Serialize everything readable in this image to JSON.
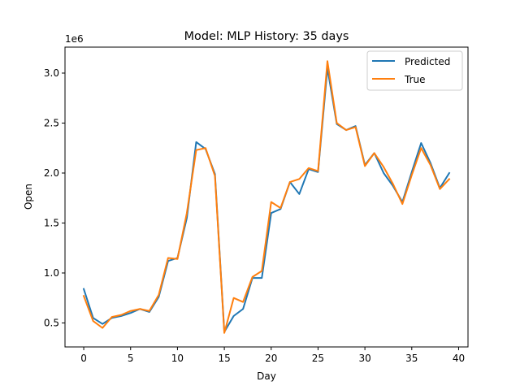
{
  "chart_data": {
    "type": "line",
    "title": "Model: MLP  History: 35 days",
    "xlabel": "Day",
    "ylabel": "Open",
    "y_offset_label": "1e6",
    "xlim": [
      -2,
      41
    ],
    "ylim": [
      0.26,
      3.26
    ],
    "xticks": [
      0,
      5,
      10,
      15,
      20,
      25,
      30,
      35,
      40
    ],
    "yticks": [
      0.5,
      1.0,
      1.5,
      2.0,
      2.5,
      3.0
    ],
    "ytick_labels": [
      "0.5",
      "1.0",
      "1.5",
      "2.0",
      "2.5",
      "3.0"
    ],
    "grid": false,
    "legend_position": "top-right",
    "x": [
      0,
      1,
      2,
      3,
      4,
      5,
      6,
      7,
      8,
      9,
      10,
      11,
      12,
      13,
      14,
      15,
      16,
      17,
      18,
      19,
      20,
      21,
      22,
      23,
      24,
      25,
      26,
      27,
      28,
      29,
      30,
      31,
      32,
      33,
      34,
      35,
      36,
      37,
      38,
      39
    ],
    "series": [
      {
        "name": "Predicted",
        "color": "#1f77b4",
        "values": [
          0.84,
          0.55,
          0.49,
          0.55,
          0.57,
          0.6,
          0.64,
          0.61,
          0.76,
          1.12,
          1.15,
          1.55,
          2.31,
          2.24,
          1.99,
          0.41,
          0.57,
          0.64,
          0.95,
          0.95,
          1.6,
          1.64,
          1.91,
          1.79,
          2.04,
          2.01,
          3.05,
          2.49,
          2.43,
          2.47,
          2.08,
          2.2,
          2.0,
          1.87,
          1.71,
          2.01,
          2.3,
          2.1,
          1.85,
          2.0
        ]
      },
      {
        "name": "True",
        "color": "#ff7f0e",
        "values": [
          0.77,
          0.52,
          0.45,
          0.56,
          0.58,
          0.62,
          0.64,
          0.62,
          0.78,
          1.15,
          1.14,
          1.6,
          2.23,
          2.25,
          1.97,
          0.4,
          0.75,
          0.71,
          0.96,
          1.02,
          1.71,
          1.65,
          1.91,
          1.94,
          2.05,
          2.02,
          3.12,
          2.5,
          2.43,
          2.46,
          2.07,
          2.2,
          2.06,
          1.89,
          1.69,
          1.98,
          2.25,
          2.08,
          1.84,
          1.94
        ]
      }
    ]
  }
}
